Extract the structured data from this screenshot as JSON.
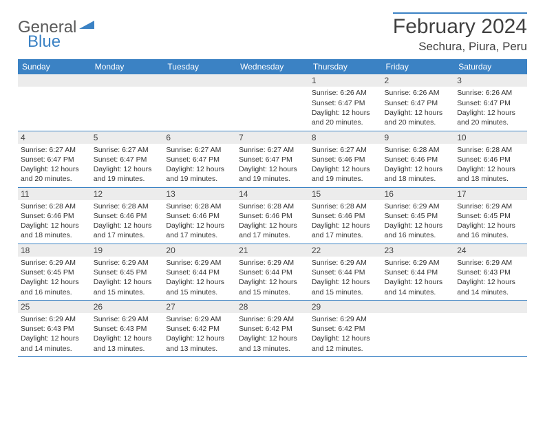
{
  "logo": {
    "general": "General",
    "blue": "Blue"
  },
  "title": "February 2024",
  "location": "Sechura, Piura, Peru",
  "colors": {
    "accent": "#3b82c4",
    "daybar": "#ececec",
    "text": "#333333"
  },
  "weekdays": [
    "Sunday",
    "Monday",
    "Tuesday",
    "Wednesday",
    "Thursday",
    "Friday",
    "Saturday"
  ],
  "weeks": [
    [
      null,
      null,
      null,
      null,
      {
        "n": "1",
        "sr": "Sunrise: 6:26 AM",
        "ss": "Sunset: 6:47 PM",
        "d1": "Daylight: 12 hours",
        "d2": "and 20 minutes."
      },
      {
        "n": "2",
        "sr": "Sunrise: 6:26 AM",
        "ss": "Sunset: 6:47 PM",
        "d1": "Daylight: 12 hours",
        "d2": "and 20 minutes."
      },
      {
        "n": "3",
        "sr": "Sunrise: 6:26 AM",
        "ss": "Sunset: 6:47 PM",
        "d1": "Daylight: 12 hours",
        "d2": "and 20 minutes."
      }
    ],
    [
      {
        "n": "4",
        "sr": "Sunrise: 6:27 AM",
        "ss": "Sunset: 6:47 PM",
        "d1": "Daylight: 12 hours",
        "d2": "and 20 minutes."
      },
      {
        "n": "5",
        "sr": "Sunrise: 6:27 AM",
        "ss": "Sunset: 6:47 PM",
        "d1": "Daylight: 12 hours",
        "d2": "and 19 minutes."
      },
      {
        "n": "6",
        "sr": "Sunrise: 6:27 AM",
        "ss": "Sunset: 6:47 PM",
        "d1": "Daylight: 12 hours",
        "d2": "and 19 minutes."
      },
      {
        "n": "7",
        "sr": "Sunrise: 6:27 AM",
        "ss": "Sunset: 6:47 PM",
        "d1": "Daylight: 12 hours",
        "d2": "and 19 minutes."
      },
      {
        "n": "8",
        "sr": "Sunrise: 6:27 AM",
        "ss": "Sunset: 6:46 PM",
        "d1": "Daylight: 12 hours",
        "d2": "and 19 minutes."
      },
      {
        "n": "9",
        "sr": "Sunrise: 6:28 AM",
        "ss": "Sunset: 6:46 PM",
        "d1": "Daylight: 12 hours",
        "d2": "and 18 minutes."
      },
      {
        "n": "10",
        "sr": "Sunrise: 6:28 AM",
        "ss": "Sunset: 6:46 PM",
        "d1": "Daylight: 12 hours",
        "d2": "and 18 minutes."
      }
    ],
    [
      {
        "n": "11",
        "sr": "Sunrise: 6:28 AM",
        "ss": "Sunset: 6:46 PM",
        "d1": "Daylight: 12 hours",
        "d2": "and 18 minutes."
      },
      {
        "n": "12",
        "sr": "Sunrise: 6:28 AM",
        "ss": "Sunset: 6:46 PM",
        "d1": "Daylight: 12 hours",
        "d2": "and 17 minutes."
      },
      {
        "n": "13",
        "sr": "Sunrise: 6:28 AM",
        "ss": "Sunset: 6:46 PM",
        "d1": "Daylight: 12 hours",
        "d2": "and 17 minutes."
      },
      {
        "n": "14",
        "sr": "Sunrise: 6:28 AM",
        "ss": "Sunset: 6:46 PM",
        "d1": "Daylight: 12 hours",
        "d2": "and 17 minutes."
      },
      {
        "n": "15",
        "sr": "Sunrise: 6:28 AM",
        "ss": "Sunset: 6:46 PM",
        "d1": "Daylight: 12 hours",
        "d2": "and 17 minutes."
      },
      {
        "n": "16",
        "sr": "Sunrise: 6:29 AM",
        "ss": "Sunset: 6:45 PM",
        "d1": "Daylight: 12 hours",
        "d2": "and 16 minutes."
      },
      {
        "n": "17",
        "sr": "Sunrise: 6:29 AM",
        "ss": "Sunset: 6:45 PM",
        "d1": "Daylight: 12 hours",
        "d2": "and 16 minutes."
      }
    ],
    [
      {
        "n": "18",
        "sr": "Sunrise: 6:29 AM",
        "ss": "Sunset: 6:45 PM",
        "d1": "Daylight: 12 hours",
        "d2": "and 16 minutes."
      },
      {
        "n": "19",
        "sr": "Sunrise: 6:29 AM",
        "ss": "Sunset: 6:45 PM",
        "d1": "Daylight: 12 hours",
        "d2": "and 15 minutes."
      },
      {
        "n": "20",
        "sr": "Sunrise: 6:29 AM",
        "ss": "Sunset: 6:44 PM",
        "d1": "Daylight: 12 hours",
        "d2": "and 15 minutes."
      },
      {
        "n": "21",
        "sr": "Sunrise: 6:29 AM",
        "ss": "Sunset: 6:44 PM",
        "d1": "Daylight: 12 hours",
        "d2": "and 15 minutes."
      },
      {
        "n": "22",
        "sr": "Sunrise: 6:29 AM",
        "ss": "Sunset: 6:44 PM",
        "d1": "Daylight: 12 hours",
        "d2": "and 15 minutes."
      },
      {
        "n": "23",
        "sr": "Sunrise: 6:29 AM",
        "ss": "Sunset: 6:44 PM",
        "d1": "Daylight: 12 hours",
        "d2": "and 14 minutes."
      },
      {
        "n": "24",
        "sr": "Sunrise: 6:29 AM",
        "ss": "Sunset: 6:43 PM",
        "d1": "Daylight: 12 hours",
        "d2": "and 14 minutes."
      }
    ],
    [
      {
        "n": "25",
        "sr": "Sunrise: 6:29 AM",
        "ss": "Sunset: 6:43 PM",
        "d1": "Daylight: 12 hours",
        "d2": "and 14 minutes."
      },
      {
        "n": "26",
        "sr": "Sunrise: 6:29 AM",
        "ss": "Sunset: 6:43 PM",
        "d1": "Daylight: 12 hours",
        "d2": "and 13 minutes."
      },
      {
        "n": "27",
        "sr": "Sunrise: 6:29 AM",
        "ss": "Sunset: 6:42 PM",
        "d1": "Daylight: 12 hours",
        "d2": "and 13 minutes."
      },
      {
        "n": "28",
        "sr": "Sunrise: 6:29 AM",
        "ss": "Sunset: 6:42 PM",
        "d1": "Daylight: 12 hours",
        "d2": "and 13 minutes."
      },
      {
        "n": "29",
        "sr": "Sunrise: 6:29 AM",
        "ss": "Sunset: 6:42 PM",
        "d1": "Daylight: 12 hours",
        "d2": "and 12 minutes."
      },
      null,
      null
    ]
  ]
}
